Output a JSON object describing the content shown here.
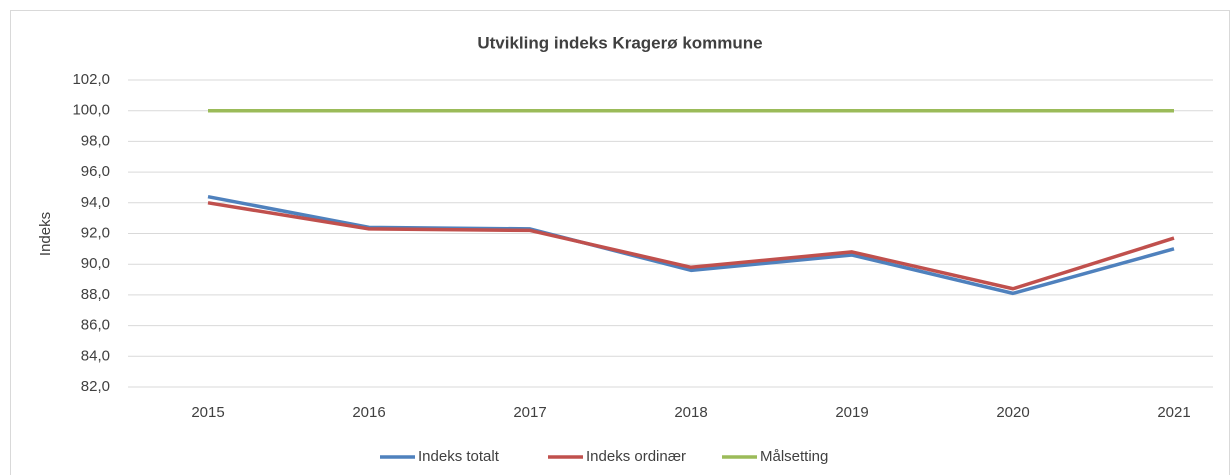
{
  "chart_data": {
    "type": "line",
    "title": "Utvikling indeks Kragerø kommune",
    "y_label": "Indeks",
    "categories": [
      "2015",
      "2016",
      "2017",
      "2018",
      "2019",
      "2020",
      "2021"
    ],
    "series": [
      {
        "name": "Indeks totalt",
        "color": "#4f81bd",
        "values": [
          94.4,
          92.4,
          92.3,
          89.6,
          90.6,
          88.1,
          91.0
        ]
      },
      {
        "name": "Indeks ordinær",
        "color": "#c0504d",
        "values": [
          94.0,
          92.3,
          92.2,
          89.8,
          90.8,
          88.4,
          91.7
        ]
      },
      {
        "name": "Målsetting",
        "color": "#9bbb59",
        "values": [
          100,
          100,
          100,
          100,
          100,
          100,
          100
        ]
      }
    ],
    "ylim": [
      82,
      102
    ],
    "yticks": [
      {
        "value": 82,
        "label": "82,0"
      },
      {
        "value": 84,
        "label": "84,0"
      },
      {
        "value": 86,
        "label": "86,0"
      },
      {
        "value": 88,
        "label": "88,0"
      },
      {
        "value": 90,
        "label": "90,0"
      },
      {
        "value": 92,
        "label": "92,0"
      },
      {
        "value": 94,
        "label": "94,0"
      },
      {
        "value": 96,
        "label": "96,0"
      },
      {
        "value": 98,
        "label": "98,0"
      },
      {
        "value": 100,
        "label": "100,0"
      },
      {
        "value": 102,
        "label": "102,0"
      }
    ],
    "grid": true,
    "legend": "bottom"
  }
}
